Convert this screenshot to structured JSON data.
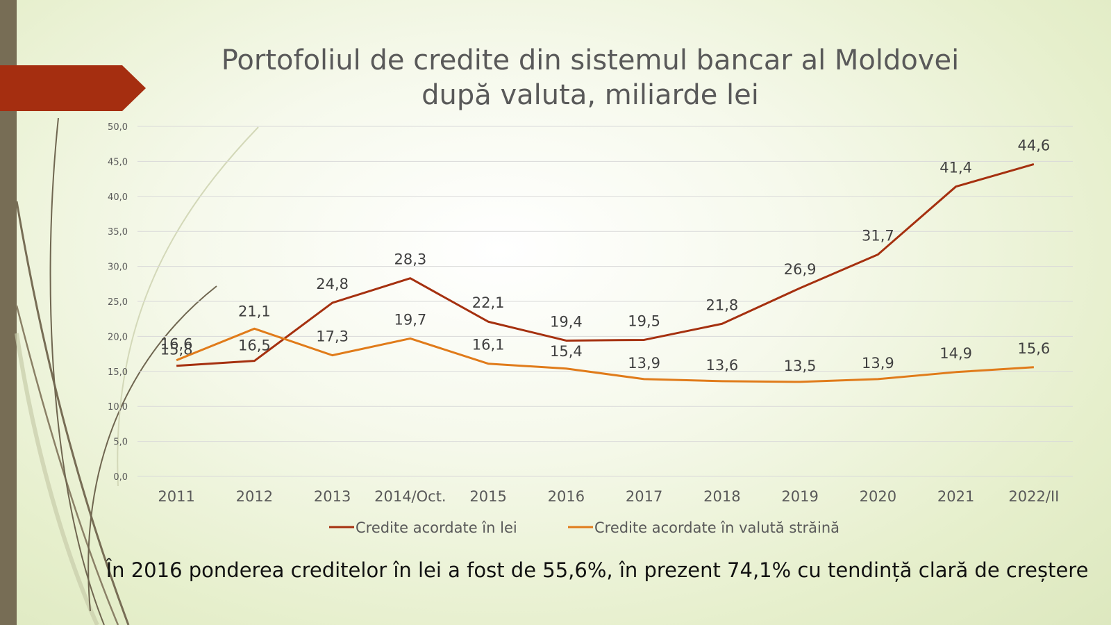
{
  "slide": {
    "title_line1": "Portofoliul de credite din sistemul bancar al Moldovei",
    "title_line2": "după valuta, miliarde lei",
    "footer": "În 2016 ponderea creditelor în lei a fost de 55,6%, în prezent 74,1% cu tendință clară de creștere"
  },
  "colors": {
    "sidebar": "#776d55",
    "arrow": "#a52e10",
    "series_lei": "#a5300f",
    "series_valuta": "#e07b1a",
    "grid": "#d9d9d9",
    "text": "#404040"
  },
  "chart_data": {
    "type": "line",
    "categories": [
      "2011",
      "2012",
      "2013",
      "2014/Oct.",
      "2015",
      "2016",
      "2017",
      "2018",
      "2019",
      "2020",
      "2021",
      "2022/II"
    ],
    "series": [
      {
        "name": "Credite acordate în lei",
        "values": [
          15.8,
          16.5,
          24.8,
          28.3,
          22.1,
          19.4,
          19.5,
          21.8,
          26.9,
          31.7,
          41.4,
          44.6
        ],
        "labels": [
          "15,8",
          "16,5",
          "24,8",
          "28,3",
          "22,1",
          "19,4",
          "19,5",
          "21,8",
          "26,9",
          "31,7",
          "41,4",
          "44,6"
        ]
      },
      {
        "name": "Credite acordate în valută străină",
        "values": [
          16.6,
          21.1,
          17.3,
          19.7,
          16.1,
          15.4,
          13.9,
          13.6,
          13.5,
          13.9,
          14.9,
          15.6
        ],
        "labels": [
          "16,6",
          "21,1",
          "17,3",
          "19,7",
          "16,1",
          "15,4",
          "13,9",
          "13,6",
          "13,5",
          "13,9",
          "14,9",
          "15,6"
        ]
      }
    ],
    "ylim": [
      0,
      50
    ],
    "yticks": [
      0,
      5,
      10,
      15,
      20,
      25,
      30,
      35,
      40,
      45,
      50
    ],
    "ytick_labels": [
      "0,0",
      "5,0",
      "10,0",
      "15,0",
      "20,0",
      "25,0",
      "30,0",
      "35,0",
      "40,0",
      "45,0",
      "50,0"
    ],
    "grid": true,
    "legend": "bottom"
  }
}
